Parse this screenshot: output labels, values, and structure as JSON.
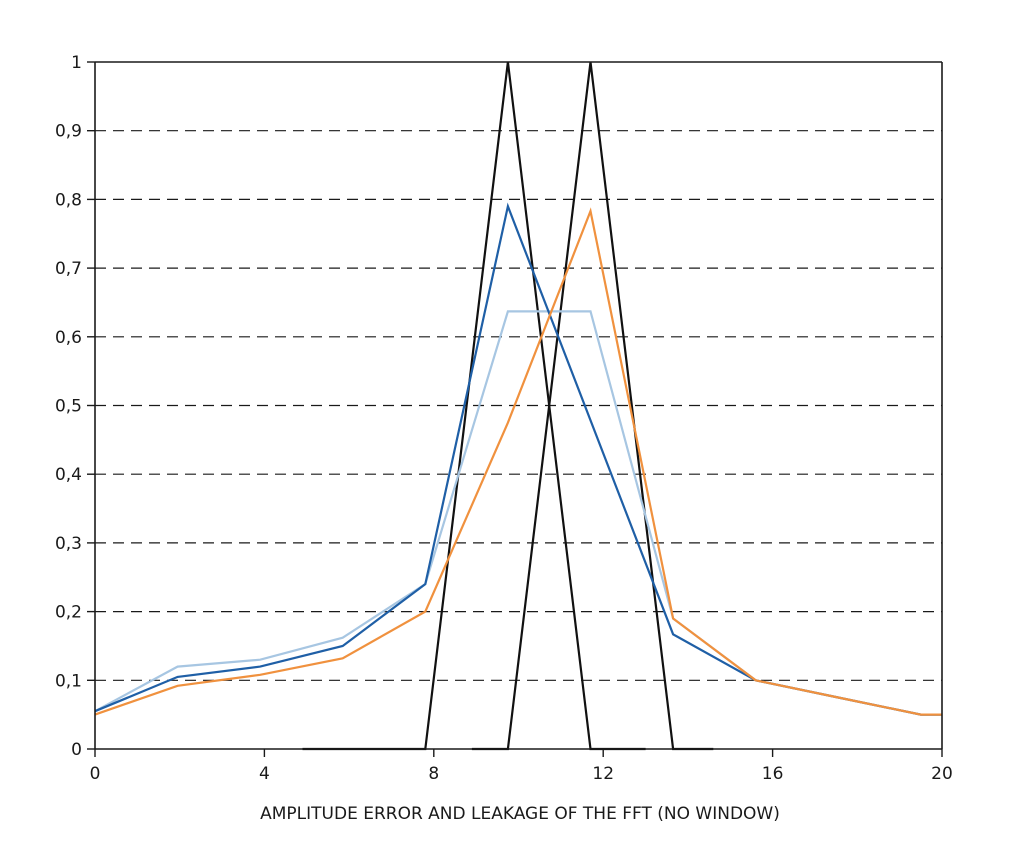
{
  "chart_data": {
    "type": "line",
    "title": "",
    "xlabel": "AMPLITUDE ERROR AND LEAKAGE OF THE FFT (NO WINDOW)",
    "ylabel": "",
    "xlim": [
      0,
      20
    ],
    "ylim": [
      0,
      1
    ],
    "x_ticks": [
      "0",
      "4",
      "8",
      "12",
      "16",
      "20"
    ],
    "x_tick_values": [
      0,
      4,
      8,
      12,
      16,
      20
    ],
    "y_ticks": [
      "0",
      "0,1",
      "0,2",
      "0,3",
      "0,4",
      "0,5",
      "0,6",
      "0,7",
      "0,8",
      "0,9",
      "1"
    ],
    "y_tick_values": [
      0,
      0.1,
      0.2,
      0.3,
      0.4,
      0.5,
      0.6,
      0.7,
      0.8,
      0.9,
      1
    ],
    "grid": "horizontal dashed",
    "legend": "none",
    "series": [
      {
        "color": "#111111",
        "points": [
          [
            4.9,
            0
          ],
          [
            7.8,
            0
          ],
          [
            9.75,
            1
          ],
          [
            11.7,
            0
          ],
          [
            13.0,
            0
          ]
        ]
      },
      {
        "color": "#111111",
        "points": [
          [
            8.9,
            0
          ],
          [
            9.75,
            0
          ],
          [
            11.7,
            1
          ],
          [
            13.65,
            0
          ],
          [
            14.6,
            0
          ]
        ]
      },
      {
        "color": "#a7c6e2",
        "points": [
          [
            0,
            0.055
          ],
          [
            1.95,
            0.12
          ],
          [
            3.9,
            0.13
          ],
          [
            5.85,
            0.162
          ],
          [
            7.8,
            0.24
          ],
          [
            9.75,
            0.637
          ],
          [
            11.7,
            0.637
          ],
          [
            13.65,
            0.19
          ],
          [
            15.6,
            0.1
          ],
          [
            17.55,
            0.075
          ],
          [
            19.5,
            0.05
          ],
          [
            20,
            0.05
          ]
        ]
      },
      {
        "color": "#1f5fa6",
        "points": [
          [
            0,
            0.055
          ],
          [
            1.95,
            0.105
          ],
          [
            3.9,
            0.12
          ],
          [
            5.85,
            0.15
          ],
          [
            7.8,
            0.24
          ],
          [
            9.75,
            0.79
          ],
          [
            13.65,
            0.167
          ],
          [
            15.6,
            0.1
          ],
          [
            17.55,
            0.075
          ],
          [
            19.5,
            0.05
          ],
          [
            20,
            0.05
          ]
        ]
      },
      {
        "color": "#f0913e",
        "points": [
          [
            0,
            0.05
          ],
          [
            1.95,
            0.092
          ],
          [
            3.9,
            0.108
          ],
          [
            5.85,
            0.132
          ],
          [
            7.8,
            0.2
          ],
          [
            9.75,
            0.475
          ],
          [
            11.7,
            0.783
          ],
          [
            13.65,
            0.19
          ],
          [
            15.6,
            0.1
          ],
          [
            17.55,
            0.075
          ],
          [
            19.5,
            0.05
          ],
          [
            20,
            0.05
          ]
        ]
      }
    ]
  }
}
